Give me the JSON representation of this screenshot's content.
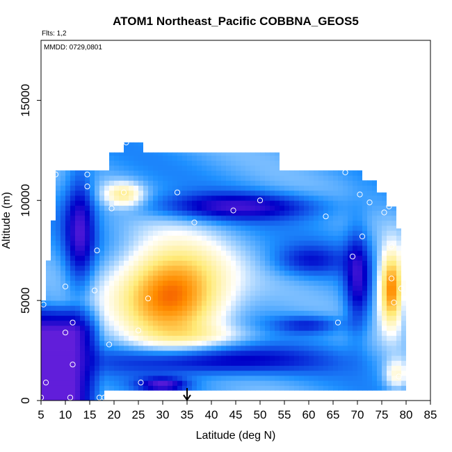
{
  "chart_data": {
    "type": "heatmap",
    "title": "ATOM1 Northeast_Pacific COBBNA_GEOS5",
    "flights_note": "Flts: 1,2",
    "dates_note": "MMDD: 0729,0801",
    "xlabel": "Latitude (deg N)",
    "ylabel": "Altitude (m)",
    "xlim": [
      5,
      85
    ],
    "ylim": [
      0,
      18000
    ],
    "x_ticks": [
      5,
      10,
      15,
      20,
      25,
      30,
      35,
      40,
      45,
      50,
      55,
      60,
      65,
      70,
      75,
      80,
      85
    ],
    "y_ticks": [
      0,
      5000,
      10000,
      15000
    ],
    "colormap": [
      "#8a2be2",
      "#0000c8",
      "#1e90ff",
      "#ffffff",
      "#ffeb7a",
      "#ff8c00",
      "#e00000"
    ],
    "grid": false,
    "arrow_marker_latitude": 35,
    "extent_polygon": [
      [
        5,
        0
      ],
      [
        18,
        0
      ],
      [
        18,
        500
      ],
      [
        80,
        500
      ],
      [
        80,
        6000
      ],
      [
        79,
        6000
      ],
      [
        79,
        8600
      ],
      [
        78,
        8600
      ],
      [
        78,
        9700
      ],
      [
        76,
        9700
      ],
      [
        76,
        10400
      ],
      [
        74,
        10400
      ],
      [
        74,
        11000
      ],
      [
        71,
        11000
      ],
      [
        71,
        11500
      ],
      [
        54,
        11500
      ],
      [
        54,
        12400
      ],
      [
        26,
        12400
      ],
      [
        26,
        12900
      ],
      [
        22,
        12900
      ],
      [
        22,
        12400
      ],
      [
        19,
        12400
      ],
      [
        19,
        11500
      ],
      [
        8,
        11500
      ],
      [
        8,
        9000
      ],
      [
        7,
        9000
      ],
      [
        7,
        7000
      ],
      [
        6,
        7000
      ],
      [
        6,
        5000
      ],
      [
        5,
        5000
      ]
    ],
    "warm_features": [
      {
        "lat": 32,
        "alt": 5400,
        "lat_width": 22,
        "alt_height": 4600,
        "strength": 1.0
      },
      {
        "lat": 77,
        "alt": 5600,
        "lat_width": 5,
        "alt_height": 3600,
        "strength": 0.95
      },
      {
        "lat": 22,
        "alt": 10300,
        "lat_width": 8,
        "alt_height": 1200,
        "strength": 0.45
      },
      {
        "lat": 78,
        "alt": 1300,
        "lat_width": 5,
        "alt_height": 1500,
        "strength": 0.35
      },
      {
        "lat": 40,
        "alt": 3300,
        "lat_width": 24,
        "alt_height": 1000,
        "strength": 0.15
      }
    ],
    "cold_features": [
      {
        "lat": 13,
        "alt": 8500,
        "lat_width": 6,
        "alt_height": 6000,
        "strength": 0.85
      },
      {
        "lat": 45,
        "alt": 9700,
        "lat_width": 34,
        "alt_height": 1300,
        "strength": 0.8
      },
      {
        "lat": 70,
        "alt": 6000,
        "lat_width": 5,
        "alt_height": 5000,
        "strength": 0.75
      },
      {
        "lat": 40,
        "alt": 2000,
        "lat_width": 40,
        "alt_height": 1400,
        "strength": 0.85
      },
      {
        "lat": 30,
        "alt": 800,
        "lat_width": 10,
        "alt_height": 700,
        "strength": 0.9
      },
      {
        "lat": 60,
        "alt": 3800,
        "lat_width": 14,
        "alt_height": 900,
        "strength": 0.55
      },
      {
        "lat": 60,
        "alt": 7000,
        "lat_width": 14,
        "alt_height": 1500,
        "strength": 0.5
      }
    ],
    "purple_region": {
      "lat_max": 18,
      "alt_max": 5000
    },
    "observations": [
      [
        8,
        11300
      ],
      [
        14.5,
        11300
      ],
      [
        14.5,
        10700
      ],
      [
        19.5,
        9600
      ],
      [
        22,
        10400
      ],
      [
        33,
        10400
      ],
      [
        36.5,
        8900
      ],
      [
        44.5,
        9500
      ],
      [
        50,
        10000
      ],
      [
        63.5,
        9200
      ],
      [
        67.5,
        11400
      ],
      [
        70.5,
        10300
      ],
      [
        72.5,
        9900
      ],
      [
        75.5,
        9400
      ],
      [
        76.5,
        9700
      ],
      [
        71,
        8200
      ],
      [
        77,
        7700
      ],
      [
        69,
        7200
      ],
      [
        16.5,
        7500
      ],
      [
        10,
        5700
      ],
      [
        16,
        5500
      ],
      [
        27,
        5100
      ],
      [
        5.5,
        4800
      ],
      [
        77.5,
        4900
      ],
      [
        79,
        5600
      ],
      [
        77,
        6100
      ],
      [
        66,
        3900
      ],
      [
        11.5,
        3900
      ],
      [
        10,
        3400
      ],
      [
        25,
        3500
      ],
      [
        19,
        2800
      ],
      [
        11.5,
        1800
      ],
      [
        25.5,
        900
      ],
      [
        6,
        900
      ],
      [
        5,
        150
      ],
      [
        11,
        150
      ],
      [
        17,
        150
      ],
      [
        18,
        150
      ],
      [
        78.5,
        1200
      ],
      [
        22.5,
        12900
      ]
    ]
  }
}
